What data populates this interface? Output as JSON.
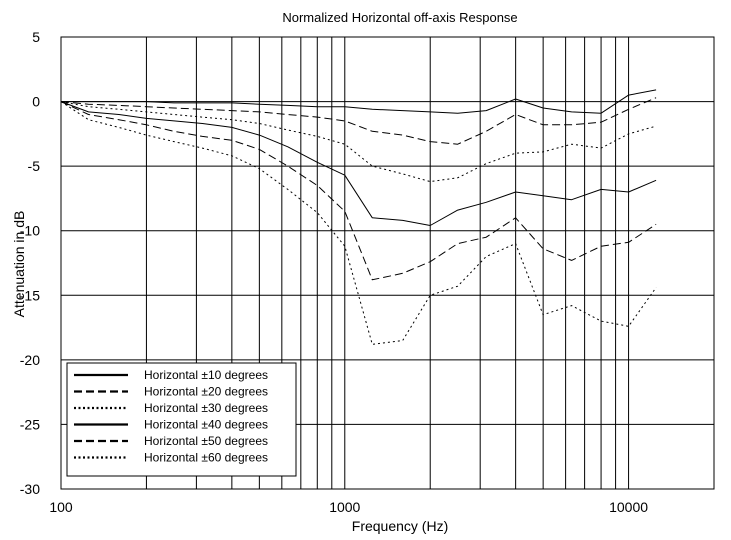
{
  "chart_data": {
    "type": "line",
    "title": "Normalized Horizontal off-axis Response",
    "xlabel": "Frequency (Hz)",
    "ylabel": "Attenuation in dB",
    "x_scale": "log",
    "xlim": [
      100,
      20000
    ],
    "ylim": [
      -30,
      5
    ],
    "x_tick_labels": [
      "100",
      "1000",
      "10000"
    ],
    "y_tick_labels": [
      "5",
      "0",
      "-5",
      "-10",
      "-15",
      "-20",
      "-25",
      "-30"
    ],
    "grid": true,
    "legend_position": "bottom-left",
    "x": [
      100,
      125,
      160,
      200,
      250,
      315,
      400,
      500,
      630,
      800,
      1000,
      1250,
      1600,
      2000,
      2500,
      3150,
      4000,
      5000,
      6300,
      8000,
      10000,
      12500
    ],
    "series": [
      {
        "name": "Horizontal ±10 degrees",
        "style": "solid",
        "width": 1,
        "values": [
          0,
          0,
          0,
          0,
          -0.1,
          -0.1,
          -0.1,
          -0.2,
          -0.3,
          -0.4,
          -0.4,
          -0.6,
          -0.7,
          -0.8,
          -0.9,
          -0.7,
          0.2,
          -0.5,
          -0.8,
          -0.9,
          0.5,
          0.9
        ]
      },
      {
        "name": "Horizontal ±20 degrees",
        "style": "dashed",
        "width": 1,
        "values": [
          0,
          -0.2,
          -0.3,
          -0.4,
          -0.5,
          -0.6,
          -0.7,
          -0.8,
          -1.0,
          -1.2,
          -1.5,
          -2.3,
          -2.6,
          -3.1,
          -3.3,
          -2.3,
          -1.0,
          -1.8,
          -1.8,
          -1.6,
          -0.6,
          0.3
        ]
      },
      {
        "name": "Horizontal ±30 degrees",
        "style": "dotted",
        "width": 1,
        "values": [
          0,
          -0.4,
          -0.6,
          -0.8,
          -1.0,
          -1.2,
          -1.4,
          -1.7,
          -2.2,
          -2.7,
          -3.3,
          -5.0,
          -5.6,
          -6.2,
          -5.9,
          -4.8,
          -4.0,
          -3.9,
          -3.3,
          -3.6,
          -2.5,
          -1.9
        ]
      },
      {
        "name": "Horizontal ±40 degrees",
        "style": "solid",
        "width": 1,
        "values": [
          0,
          -0.8,
          -1.0,
          -1.3,
          -1.5,
          -1.7,
          -2.0,
          -2.6,
          -3.5,
          -4.7,
          -5.7,
          -9.0,
          -9.2,
          -9.6,
          -8.4,
          -7.8,
          -7.0,
          -7.3,
          -7.6,
          -6.8,
          -7.0,
          -6.1
        ]
      },
      {
        "name": "Horizontal ±50 degrees",
        "style": "dashed",
        "width": 1,
        "values": [
          0,
          -1.0,
          -1.4,
          -1.8,
          -2.3,
          -2.7,
          -3.0,
          -3.7,
          -5.0,
          -6.5,
          -8.5,
          -13.8,
          -13.3,
          -12.4,
          -11.0,
          -10.5,
          -9.0,
          -11.4,
          -12.3,
          -11.2,
          -10.9,
          -9.5
        ]
      },
      {
        "name": "Horizontal ±60 degrees",
        "style": "dotted",
        "width": 1,
        "values": [
          0,
          -1.4,
          -2.0,
          -2.6,
          -3.1,
          -3.6,
          -4.2,
          -5.2,
          -6.8,
          -8.6,
          -11.2,
          -18.8,
          -18.5,
          -15.0,
          -14.3,
          -12.0,
          -11.0,
          -16.5,
          -15.8,
          -17.0,
          -17.4,
          -14.4
        ]
      }
    ]
  }
}
